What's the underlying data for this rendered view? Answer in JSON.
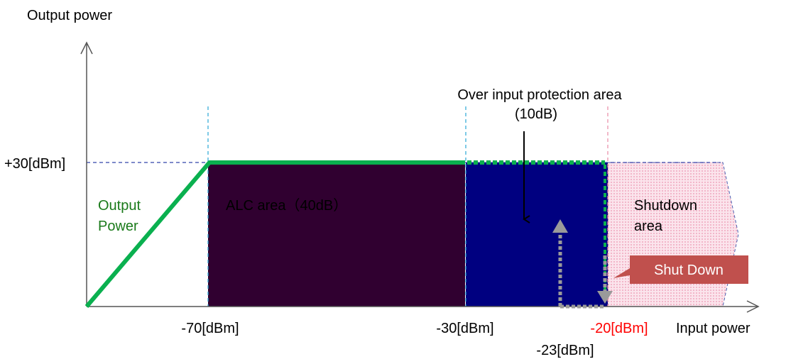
{
  "axes": {
    "y_label": "Output power",
    "x_label": "Input power",
    "y_tick": "+30[dBm]",
    "x_ticks": {
      "minus70": "-70[dBm]",
      "minus30": "-30[dBm]",
      "minus20": "-20[dBm]",
      "minus23": "-23[dBm]"
    }
  },
  "areas": {
    "alc": "ALC area（40dB）",
    "protection_line1": "Over input protection area",
    "protection_line2": "(10dB)",
    "shutdown_line1": "Shutdown",
    "shutdown_line2": "area"
  },
  "curve_label": {
    "line1": "Output",
    "line2": "Power"
  },
  "callout": "Shut Down",
  "colors": {
    "alc_area": "#300030",
    "protection_area": "#000080",
    "shutdown_area": "#f7d3df",
    "output_curve": "#0ab04f",
    "curve_label": "#1a7a1a",
    "callout_box": "#c0504d",
    "shutdown_tick": "#ff0000"
  }
}
